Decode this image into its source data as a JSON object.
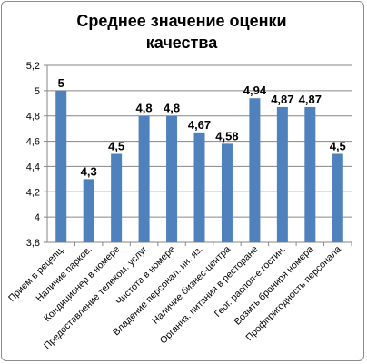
{
  "chart_data": {
    "type": "bar",
    "title_lines": [
      "Среднее    значение оценки",
      "качества"
    ],
    "categories": [
      "Прием в рецепц.",
      "Наличие парков.",
      "Кондиционер в номере",
      "Предоставление телеком. услуг",
      "Чистота в номере",
      "Владение персонал. ин. яз.",
      "Наличие бизнес-центра",
      "Организ. питания в ресторане",
      "Геог. распол-е гостин.",
      "Возмть брониря номера",
      "Профпригодность персонала"
    ],
    "values": [
      5,
      4.3,
      4.5,
      4.8,
      4.8,
      4.67,
      4.58,
      4.94,
      4.87,
      4.87,
      4.5
    ],
    "data_labels": [
      "5",
      "4,3",
      "4,5",
      "4,8",
      "4,8",
      "4,67",
      "4,58",
      "4,94",
      "4,87",
      "4,87",
      "4,5"
    ],
    "ylim": [
      3.8,
      5.2
    ],
    "y_ticks": [
      3.8,
      4,
      4.2,
      4.4,
      4.6,
      4.8,
      5,
      5.2
    ],
    "y_tick_labels": [
      "3,8",
      "4",
      "4,2",
      "4,4",
      "4,6",
      "4,8",
      "5",
      "5,2"
    ],
    "grid": true,
    "legend": "none",
    "bar_color": "#4f81bd",
    "grid_color": "#868686"
  }
}
